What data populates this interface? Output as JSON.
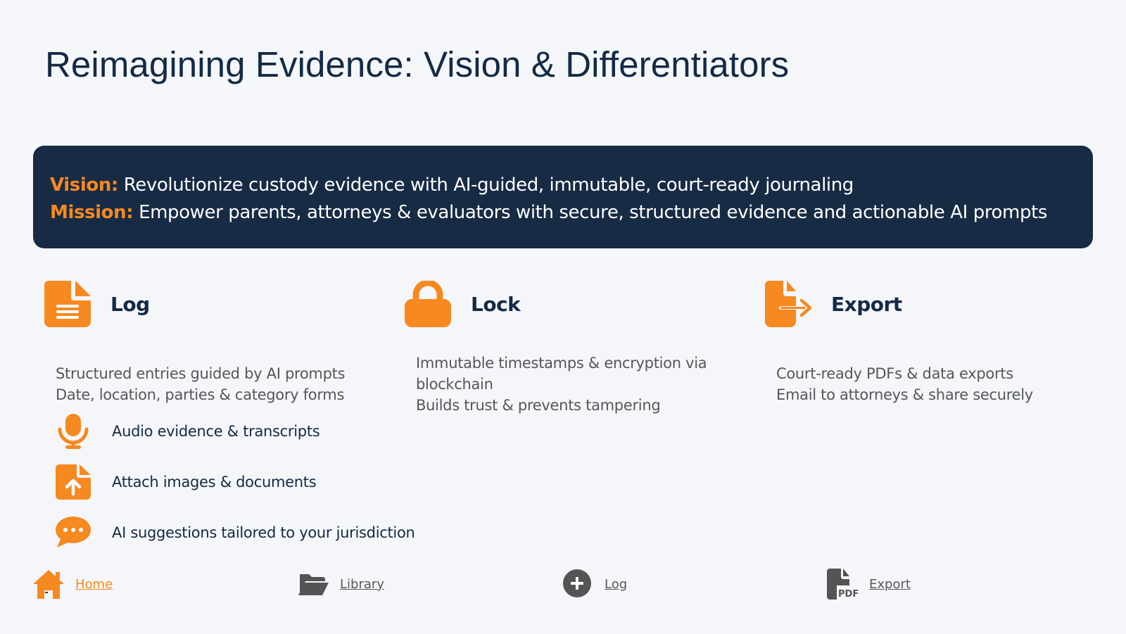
{
  "title": "Reimagining Evidence: Vision & Differentiators",
  "banner": {
    "vision_label": "Vision:",
    "vision_text": " Revolutionize custody evidence with AI-guided, immutable, court-ready journaling",
    "mission_label": "Mission:",
    "mission_text": " Empower parents, attorneys & evaluators with secure, structured evidence and actionable AI prompts"
  },
  "features": {
    "log": {
      "icon": "document-icon",
      "name": "Log",
      "lines": [
        "Structured entries guided by AI prompts",
        "Date, location, parties & category forms"
      ]
    },
    "lock": {
      "icon": "padlock-icon",
      "name": "Lock",
      "lines": [
        "Immutable timestamps & encryption via blockchain",
        "Builds trust & prevents tampering"
      ]
    },
    "export": {
      "icon": "file-export-icon",
      "name": "Export",
      "lines": [
        "Court-ready PDFs & data exports",
        "Email to attorneys & share securely"
      ]
    }
  },
  "sub_features": [
    {
      "icon": "microphone-icon",
      "label": "Audio evidence & transcripts"
    },
    {
      "icon": "file-upload-icon",
      "label": "Attach images & documents"
    },
    {
      "icon": "chat-bubble-icon",
      "label": "AI suggestions tailored to your jurisdiction"
    }
  ],
  "nav": [
    {
      "icon": "home-icon",
      "label": "Home",
      "active": true
    },
    {
      "icon": "folder-open-icon",
      "label": "Library",
      "active": false
    },
    {
      "icon": "plus-circle-icon",
      "label": "Log",
      "active": false
    },
    {
      "icon": "pdf-file-icon",
      "label": "Export",
      "active": false
    }
  ],
  "colors": {
    "accent": "#f6891f",
    "banner_bg": "#172b45",
    "title": "#142a44",
    "body_text": "#54565c",
    "nav_icon": "#545454",
    "background": "#f4f6fa"
  }
}
